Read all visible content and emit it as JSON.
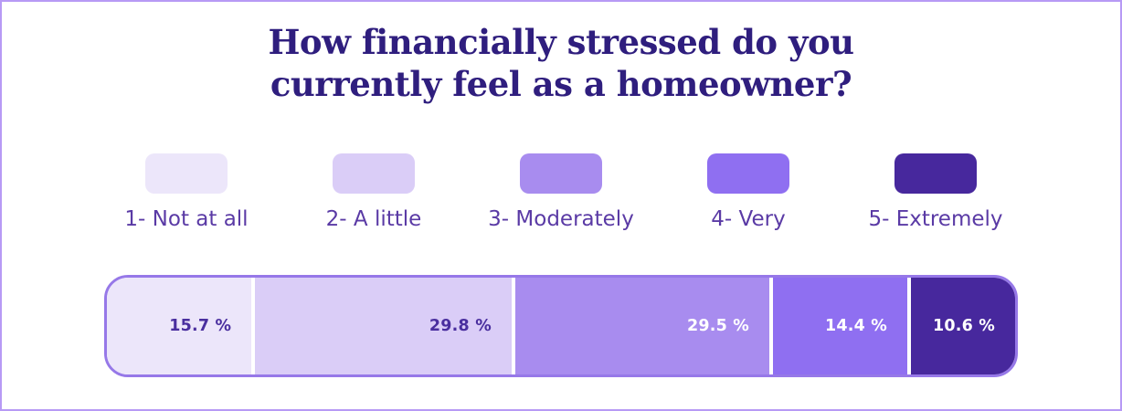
{
  "title": {
    "line1": "How financially stressed do you",
    "line2": "currently feel as a homeowner?"
  },
  "chart_data": {
    "type": "bar",
    "stacked": true,
    "orientation": "horizontal",
    "title": "How financially stressed do you currently feel as a homeowner?",
    "categories": [
      "1- Not at all",
      "2- A little",
      "3- Moderately",
      "4- Very",
      "5- Extremely"
    ],
    "values": [
      15.7,
      29.8,
      29.5,
      14.4,
      10.6
    ],
    "value_labels": [
      "15.7 %",
      "29.8 %",
      "29.5 %",
      "14.4 %",
      "10.6 %"
    ],
    "segment_colors": [
      "#ece6fa",
      "#dacdf7",
      "#a88cef",
      "#8f6ff1",
      "#47289d"
    ],
    "value_label_colors": [
      "#4a2f9f",
      "#4a2f9f",
      "#ffffff",
      "#ffffff",
      "#ffffff"
    ],
    "xlim": [
      0,
      100
    ],
    "legend_position": "top",
    "grid": false
  },
  "colors": {
    "page_border": "#b79af5",
    "bar_border": "#9678e8",
    "title_text": "#2f1e7e",
    "legend_text": "#5a3aa5",
    "separator": "#ffffff"
  }
}
